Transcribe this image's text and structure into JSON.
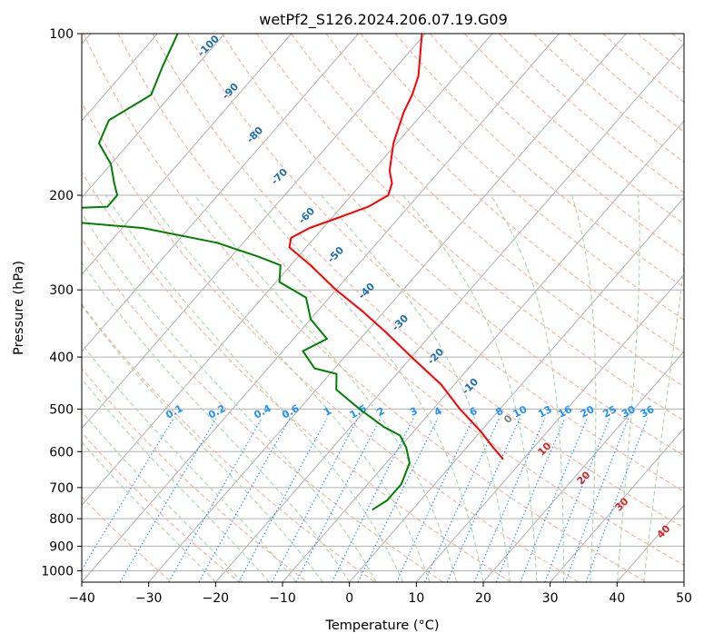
{
  "chart_data": {
    "type": "line",
    "title": "wetPf2_S126.2024.206.07.19.G09",
    "xlabel": "Temperature (°C)",
    "ylabel": "Pressure (hPa)",
    "xlim": [
      -40,
      50
    ],
    "ylim": [
      1050,
      100
    ],
    "y_scale": "log",
    "grid": true,
    "x_ticks": [
      "−40",
      "−30",
      "−20",
      "−10",
      "0",
      "10",
      "20",
      "30",
      "40",
      "50"
    ],
    "x_tick_values": [
      -40,
      -30,
      -20,
      -10,
      0,
      10,
      20,
      30,
      40,
      50
    ],
    "y_ticks": [
      "100",
      "200",
      "300",
      "400",
      "500",
      "600",
      "700",
      "800",
      "900",
      "1000"
    ],
    "y_tick_values": [
      100,
      200,
      300,
      400,
      500,
      600,
      700,
      800,
      900,
      1000
    ],
    "series": [
      {
        "color": "#ff0000",
        "pressure": [
          100,
          120,
          130,
          140,
          160,
          180,
          190,
          200,
          210,
          220,
          230,
          240,
          250,
          270,
          300,
          330,
          360,
          400,
          450,
          500,
          550,
          590,
          620
        ],
        "temperature": [
          -60.5,
          -55.5,
          -54,
          -53,
          -50.5,
          -47.5,
          -45.5,
          -44.5,
          -46,
          -49,
          -52,
          -53.5,
          -52.5,
          -47,
          -40,
          -33,
          -27,
          -20,
          -12,
          -6,
          0,
          4,
          7
        ]
      },
      {
        "color": "#008000",
        "pressure": [
          100,
          115,
          130,
          145,
          160,
          175,
          190,
          200,
          210,
          215,
          220,
          230,
          245,
          260,
          270,
          290,
          310,
          340,
          370,
          390,
          420,
          430,
          460,
          500,
          540,
          560,
          590,
          630,
          690,
          740,
          770
        ],
        "temperature": [
          -97,
          -95,
          -93,
          -96,
          -94.5,
          -90,
          -87,
          -85,
          -85,
          -104,
          -97,
          -77,
          -64,
          -56,
          -51.5,
          -49.5,
          -43.5,
          -40,
          -35,
          -37,
          -33,
          -29,
          -27,
          -21,
          -15,
          -11.5,
          -9,
          -6.5,
          -5,
          -5,
          -6
        ]
      }
    ],
    "dry_adiabat_labels": [
      "-100",
      "-90",
      "-80",
      "-70",
      "-60",
      "-50",
      "-40",
      "-30",
      "-20",
      "-10",
      "0",
      "10",
      "20",
      "30",
      "40"
    ],
    "dry_adiabat_values": [
      -100,
      -90,
      -80,
      -70,
      -60,
      -50,
      -40,
      -30,
      -20,
      -10,
      0,
      10,
      20,
      30,
      40
    ],
    "mixing_ratio_labels": [
      "0.1",
      "0.2",
      "0.4",
      "0.6",
      "1",
      "1.5",
      "2",
      "3",
      "4",
      "6",
      "8",
      "10",
      "13",
      "16",
      "20",
      "25",
      "30",
      "36"
    ],
    "mixing_ratio_values": [
      0.1,
      0.2,
      0.4,
      0.6,
      1,
      1.5,
      2,
      3,
      4,
      6,
      8,
      10,
      13,
      16,
      20,
      25,
      30,
      36
    ],
    "colors": {
      "isotherm": "#b0b0b0",
      "dry_adiabat": "#f7b09c",
      "moist_adiabat": "#a8d8a8",
      "mixing_ratio": "#1e90ff",
      "dry_adiabat_label": "#1f6fad",
      "moist_label_cold": "#1f6fad",
      "moist_label_warm": "#d62728",
      "moist_label_zero": "#7f7f7f"
    }
  }
}
